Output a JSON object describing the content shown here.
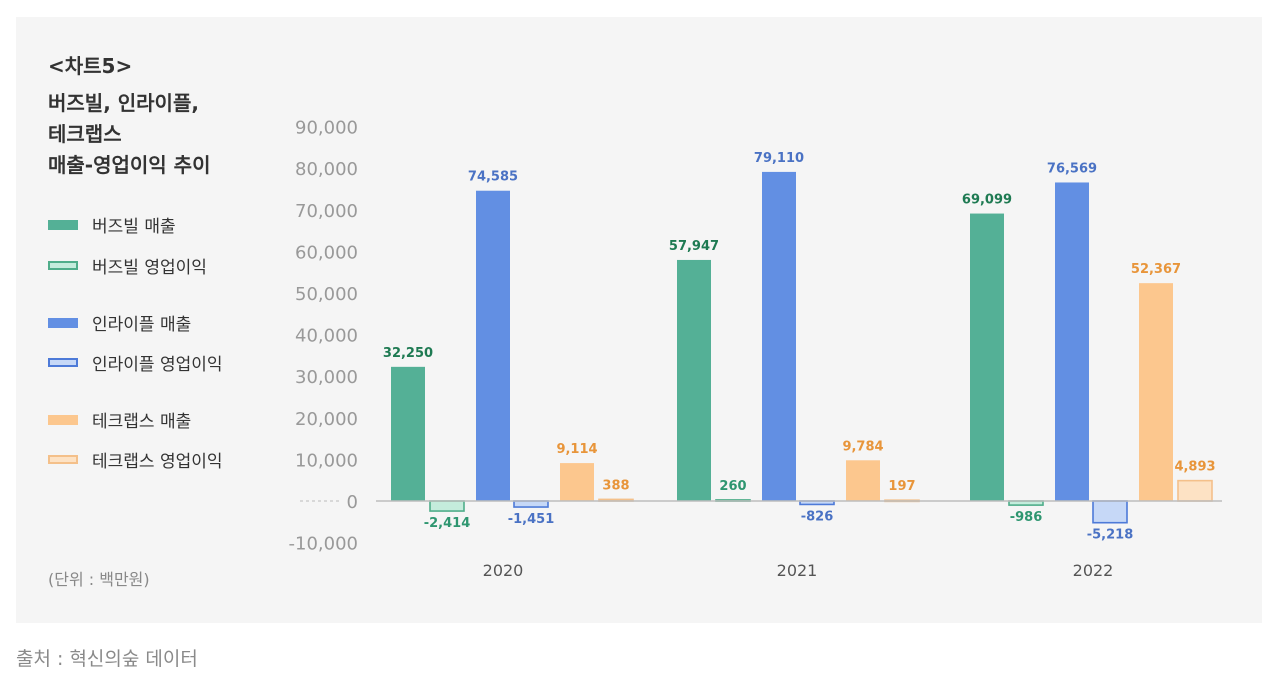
{
  "chart_label": "<차트5>",
  "title_lines": [
    "버즈빌, 인라이플,",
    "테크랩스",
    "매출-영업이익 추이"
  ],
  "unit_note": "(단위 : 백만원)",
  "source_note": "출처 : 혁신의숲 데이터",
  "legend": [
    {
      "label": "버즈빌 매출",
      "style": "solid",
      "fill": "#54b096",
      "stroke": "#54b096"
    },
    {
      "label": "버즈빌 영업이익",
      "style": "light",
      "fill": "#c4ecdc",
      "stroke": "#4fad8a"
    },
    {
      "label": "인라이플 매출",
      "style": "solid",
      "fill": "#628fe3",
      "stroke": "#628fe3"
    },
    {
      "label": "인라이플 영업이익",
      "style": "light",
      "fill": "#c6d8f7",
      "stroke": "#4d7ad8"
    },
    {
      "label": "테크랩스 매출",
      "style": "solid",
      "fill": "#fcc78e",
      "stroke": "#fcc78e"
    },
    {
      "label": "테크랩스 영업이익",
      "style": "light",
      "fill": "#fde2c4",
      "stroke": "#f4c08a"
    }
  ],
  "chart_data": {
    "type": "bar",
    "categories": [
      "2020",
      "2021",
      "2022"
    ],
    "ylim": [
      -10000,
      90000
    ],
    "yticks": [
      90000,
      80000,
      70000,
      60000,
      50000,
      40000,
      30000,
      20000,
      10000,
      0,
      -10000
    ],
    "ytick_labels": [
      "90,000",
      "80,000",
      "70,000",
      "60,000",
      "50,000",
      "40,000",
      "30,000",
      "20,000",
      "10,000",
      "0",
      "-10,000"
    ],
    "series": [
      {
        "name": "버즈빌 매출",
        "values": [
          32250,
          57947,
          69099
        ],
        "labels": [
          "32,250",
          "57,947",
          "69,099"
        ],
        "fill": "#54b096",
        "stroke": "#54b096",
        "label_color": "#1e7a52"
      },
      {
        "name": "버즈빌 영업이익",
        "values": [
          -2414,
          260,
          -986
        ],
        "labels": [
          "-2,414",
          "260",
          "-986"
        ],
        "fill": "#c4ecdc",
        "stroke": "#4fad8a",
        "label_color": "#2e9670"
      },
      {
        "name": "인라이플 매출",
        "values": [
          74585,
          79110,
          76569
        ],
        "labels": [
          "74,585",
          "79,110",
          "76,569"
        ],
        "fill": "#628fe3",
        "stroke": "#628fe3",
        "label_color": "#4a72c4"
      },
      {
        "name": "인라이플 영업이익",
        "values": [
          -1451,
          -826,
          -5218
        ],
        "labels": [
          "-1,451",
          "-826",
          "-5,218"
        ],
        "fill": "#c6d8f7",
        "stroke": "#4d7ad8",
        "label_color": "#4a72c4"
      },
      {
        "name": "테크랩스 매출",
        "values": [
          9114,
          9784,
          52367
        ],
        "labels": [
          "9,114",
          "9,784",
          "52,367"
        ],
        "fill": "#fcc78e",
        "stroke": "#fcc78e",
        "label_color": "#e8953a"
      },
      {
        "name": "테크랩스 영업이익",
        "values": [
          388,
          197,
          4893
        ],
        "labels": [
          "388",
          "197",
          "4,893"
        ],
        "fill": "#fde2c4",
        "stroke": "#f4c08a",
        "label_color": "#e8953a"
      }
    ]
  }
}
